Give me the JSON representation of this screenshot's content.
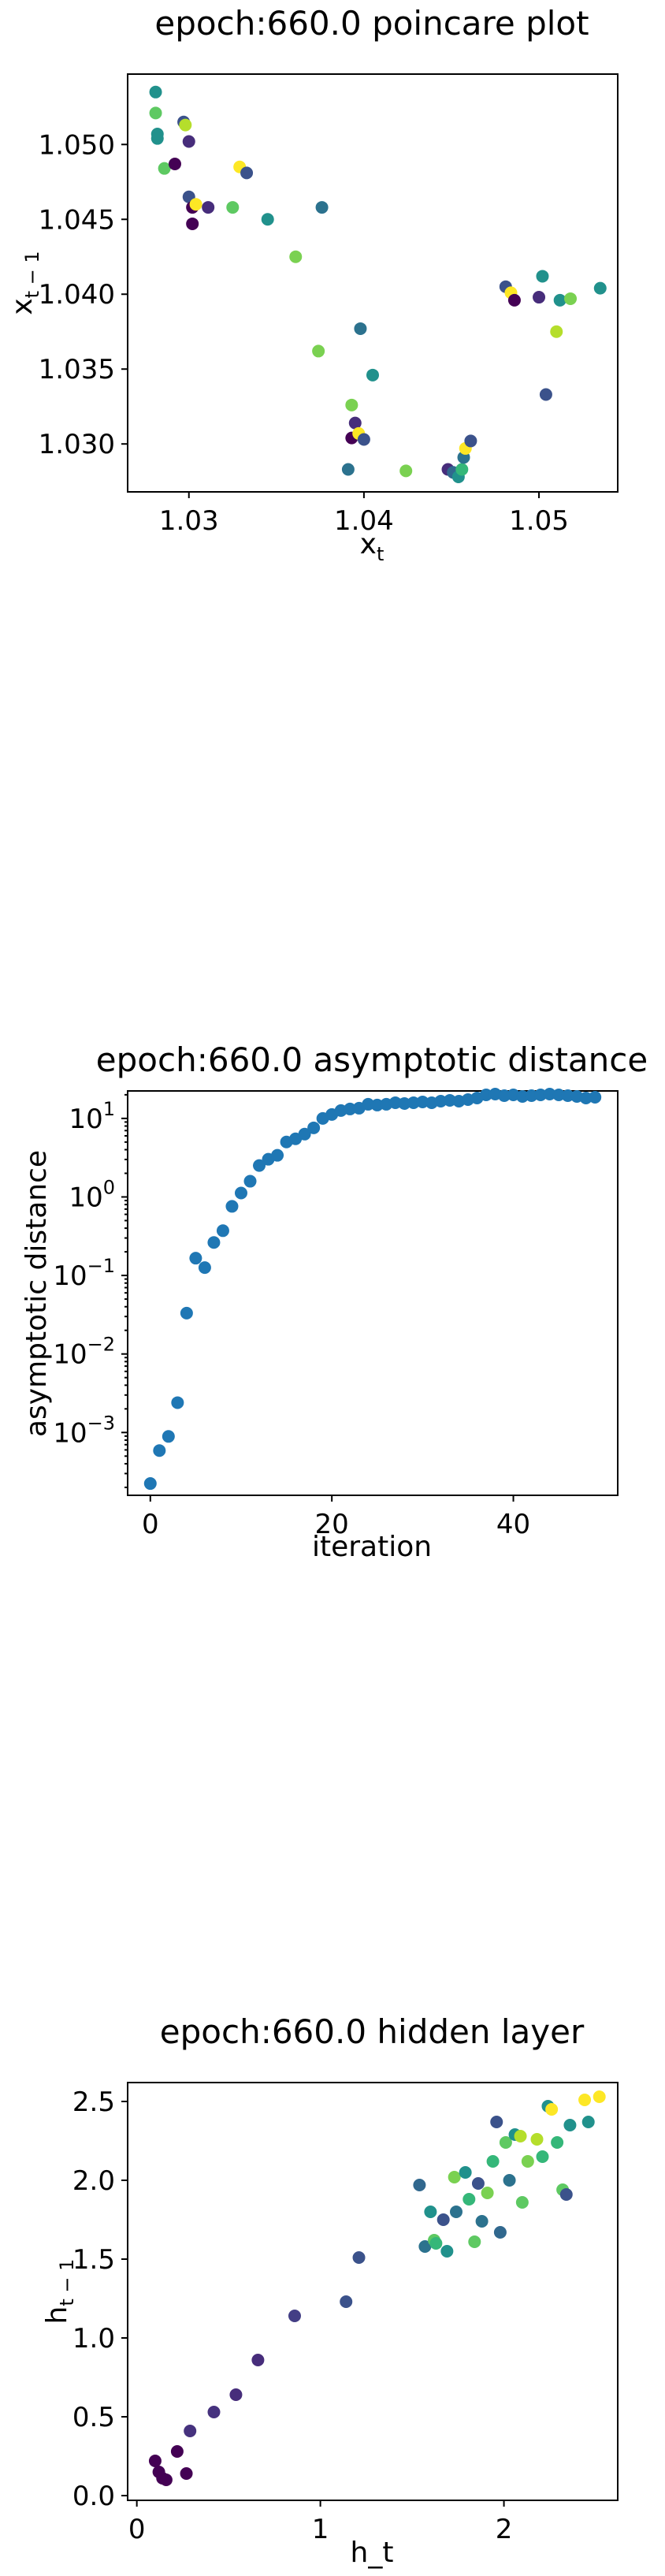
{
  "chart_data": [
    {
      "type": "scatter",
      "title": "epoch:660.0 poincare plot",
      "xlabel": "x",
      "xlabel_sub": "t",
      "ylabel": "x",
      "ylabel_sub": "t − 1",
      "xlim": [
        1.0265,
        1.0545
      ],
      "ylim": [
        1.0268,
        1.0547
      ],
      "xticks": [
        {
          "v": 1.03,
          "label": "1.03"
        },
        {
          "v": 1.04,
          "label": "1.04"
        },
        {
          "v": 1.05,
          "label": "1.05"
        }
      ],
      "yticks": [
        {
          "v": 1.03,
          "label": "1.030"
        },
        {
          "v": 1.035,
          "label": "1.035"
        },
        {
          "v": 1.04,
          "label": "1.040"
        },
        {
          "v": 1.045,
          "label": "1.045"
        },
        {
          "v": 1.05,
          "label": "1.050"
        }
      ],
      "points": [
        {
          "x": 1.0281,
          "y": 1.0535,
          "c": "#21918c"
        },
        {
          "x": 1.0281,
          "y": 1.0521,
          "c": "#5ec962"
        },
        {
          "x": 1.0282,
          "y": 1.0507,
          "c": "#21918c"
        },
        {
          "x": 1.0282,
          "y": 1.0504,
          "c": "#21918c"
        },
        {
          "x": 1.0286,
          "y": 1.0484,
          "c": "#5ec962"
        },
        {
          "x": 1.0292,
          "y": 1.0487,
          "c": "#440154"
        },
        {
          "x": 1.0297,
          "y": 1.0515,
          "c": "#3b528b"
        },
        {
          "x": 1.0298,
          "y": 1.0513,
          "c": "#b5de2b"
        },
        {
          "x": 1.03,
          "y": 1.0502,
          "c": "#472d7b"
        },
        {
          "x": 1.03,
          "y": 1.0465,
          "c": "#3b528b"
        },
        {
          "x": 1.0302,
          "y": 1.0458,
          "c": "#440154"
        },
        {
          "x": 1.0304,
          "y": 1.046,
          "c": "#fde725"
        },
        {
          "x": 1.0302,
          "y": 1.0447,
          "c": "#440154"
        },
        {
          "x": 1.0311,
          "y": 1.0458,
          "c": "#472d7b"
        },
        {
          "x": 1.0325,
          "y": 1.0458,
          "c": "#5ec962"
        },
        {
          "x": 1.0329,
          "y": 1.0485,
          "c": "#fde725"
        },
        {
          "x": 1.0333,
          "y": 1.0481,
          "c": "#3b528b"
        },
        {
          "x": 1.0345,
          "y": 1.045,
          "c": "#21918c"
        },
        {
          "x": 1.0361,
          "y": 1.0425,
          "c": "#7ad151"
        },
        {
          "x": 1.0374,
          "y": 1.0362,
          "c": "#7ad151"
        },
        {
          "x": 1.0376,
          "y": 1.0458,
          "c": "#2c728e"
        },
        {
          "x": 1.0391,
          "y": 1.0283,
          "c": "#2c728e"
        },
        {
          "x": 1.0393,
          "y": 1.0326,
          "c": "#7ad151"
        },
        {
          "x": 1.0393,
          "y": 1.0304,
          "c": "#440154"
        },
        {
          "x": 1.0395,
          "y": 1.0314,
          "c": "#472d7b"
        },
        {
          "x": 1.0397,
          "y": 1.0307,
          "c": "#fde725"
        },
        {
          "x": 1.04,
          "y": 1.0303,
          "c": "#3b528b"
        },
        {
          "x": 1.0398,
          "y": 1.0377,
          "c": "#2c728e"
        },
        {
          "x": 1.0405,
          "y": 1.0346,
          "c": "#21918c"
        },
        {
          "x": 1.0424,
          "y": 1.0282,
          "c": "#7ad151"
        },
        {
          "x": 1.0448,
          "y": 1.0283,
          "c": "#472d7b"
        },
        {
          "x": 1.0451,
          "y": 1.0281,
          "c": "#31688e"
        },
        {
          "x": 1.0454,
          "y": 1.0278,
          "c": "#21918c"
        },
        {
          "x": 1.0456,
          "y": 1.0283,
          "c": "#35b779"
        },
        {
          "x": 1.0457,
          "y": 1.0291,
          "c": "#2c728e"
        },
        {
          "x": 1.0458,
          "y": 1.0297,
          "c": "#fde725"
        },
        {
          "x": 1.0461,
          "y": 1.0302,
          "c": "#3b528b"
        },
        {
          "x": 1.0481,
          "y": 1.0405,
          "c": "#3b528b"
        },
        {
          "x": 1.0484,
          "y": 1.0401,
          "c": "#fde725"
        },
        {
          "x": 1.0486,
          "y": 1.0396,
          "c": "#440154"
        },
        {
          "x": 1.05,
          "y": 1.0398,
          "c": "#472d7b"
        },
        {
          "x": 1.0502,
          "y": 1.0412,
          "c": "#21918c"
        },
        {
          "x": 1.0504,
          "y": 1.0333,
          "c": "#3b528b"
        },
        {
          "x": 1.051,
          "y": 1.0375,
          "c": "#b5de2b"
        },
        {
          "x": 1.0512,
          "y": 1.0396,
          "c": "#21918c"
        },
        {
          "x": 1.0518,
          "y": 1.0397,
          "c": "#7ad151"
        },
        {
          "x": 1.0535,
          "y": 1.0404,
          "c": "#21918c"
        }
      ]
    },
    {
      "type": "scatter",
      "title": "epoch:660.0 asymptotic distance",
      "xlabel": "iteration",
      "ylabel": "asymptotic distance",
      "yscale": "log",
      "xlim": [
        -2.5,
        51.5
      ],
      "ylim_log10": [
        -3.8,
        1.35
      ],
      "color": "#1f77b4",
      "xticks": [
        {
          "v": 0,
          "label": "0"
        },
        {
          "v": 20,
          "label": "20"
        },
        {
          "v": 40,
          "label": "40"
        }
      ],
      "yticks": [
        {
          "e": -3,
          "base": "10",
          "exp": "−3"
        },
        {
          "e": -2,
          "base": "10",
          "exp": "−2"
        },
        {
          "e": -1,
          "base": "10",
          "exp": "−1"
        },
        {
          "e": 0,
          "base": "10",
          "exp": "0"
        },
        {
          "e": 1,
          "base": "10",
          "exp": "1"
        }
      ],
      "x": [
        0,
        1,
        2,
        3,
        4,
        5,
        6,
        7,
        8,
        9,
        10,
        11,
        12,
        13,
        14,
        15,
        16,
        17,
        18,
        19,
        20,
        21,
        22,
        23,
        24,
        25,
        26,
        27,
        28,
        29,
        30,
        31,
        32,
        33,
        34,
        35,
        36,
        37,
        38,
        39,
        40,
        41,
        42,
        43,
        44,
        45,
        46,
        47,
        48,
        49
      ],
      "log10_y": [
        -3.65,
        -3.23,
        -3.05,
        -2.62,
        -1.48,
        -0.78,
        -0.9,
        -0.58,
        -0.43,
        -0.12,
        0.05,
        0.2,
        0.4,
        0.48,
        0.53,
        0.7,
        0.74,
        0.8,
        0.88,
        1.0,
        1.05,
        1.1,
        1.12,
        1.13,
        1.18,
        1.17,
        1.18,
        1.2,
        1.19,
        1.2,
        1.21,
        1.2,
        1.22,
        1.23,
        1.22,
        1.24,
        1.26,
        1.3,
        1.31,
        1.29,
        1.3,
        1.28,
        1.29,
        1.3,
        1.31,
        1.3,
        1.29,
        1.28,
        1.26,
        1.27
      ]
    },
    {
      "type": "scatter",
      "title": "epoch:660.0 hidden layer",
      "xlabel": "h_t",
      "ylabel": "h",
      "ylabel_sub": "t − 1",
      "xlim": [
        -0.05,
        2.62
      ],
      "ylim": [
        -0.03,
        2.62
      ],
      "xticks": [
        {
          "v": 0,
          "label": "0"
        },
        {
          "v": 1,
          "label": "1"
        },
        {
          "v": 2,
          "label": "2"
        }
      ],
      "yticks": [
        {
          "v": 0,
          "label": "0.0"
        },
        {
          "v": 0.5,
          "label": "0.5"
        },
        {
          "v": 1,
          "label": "1.0"
        },
        {
          "v": 1.5,
          "label": "1.5"
        },
        {
          "v": 2,
          "label": "2.0"
        },
        {
          "v": 2.5,
          "label": "2.5"
        }
      ],
      "points": [
        {
          "x": 0.1,
          "y": 0.22,
          "c": "#440154"
        },
        {
          "x": 0.12,
          "y": 0.15,
          "c": "#440154"
        },
        {
          "x": 0.14,
          "y": 0.11,
          "c": "#440154"
        },
        {
          "x": 0.16,
          "y": 0.1,
          "c": "#440154"
        },
        {
          "x": 0.22,
          "y": 0.28,
          "c": "#440154"
        },
        {
          "x": 0.27,
          "y": 0.14,
          "c": "#440154"
        },
        {
          "x": 0.29,
          "y": 0.41,
          "c": "#46327e"
        },
        {
          "x": 0.42,
          "y": 0.53,
          "c": "#46327e"
        },
        {
          "x": 0.54,
          "y": 0.64,
          "c": "#472d7b"
        },
        {
          "x": 0.66,
          "y": 0.86,
          "c": "#472d7b"
        },
        {
          "x": 0.86,
          "y": 1.14,
          "c": "#433e85"
        },
        {
          "x": 1.14,
          "y": 1.23,
          "c": "#3b528b"
        },
        {
          "x": 1.21,
          "y": 1.51,
          "c": "#3b528b"
        },
        {
          "x": 1.54,
          "y": 1.97,
          "c": "#31688e"
        },
        {
          "x": 1.57,
          "y": 1.58,
          "c": "#2c728e"
        },
        {
          "x": 1.6,
          "y": 1.8,
          "c": "#21918c"
        },
        {
          "x": 1.62,
          "y": 1.62,
          "c": "#5ec962"
        },
        {
          "x": 1.63,
          "y": 1.6,
          "c": "#35b779"
        },
        {
          "x": 1.67,
          "y": 1.75,
          "c": "#3b528b"
        },
        {
          "x": 1.69,
          "y": 1.55,
          "c": "#21918c"
        },
        {
          "x": 1.73,
          "y": 2.02,
          "c": "#7ad151"
        },
        {
          "x": 1.74,
          "y": 1.8,
          "c": "#2c728e"
        },
        {
          "x": 1.79,
          "y": 2.05,
          "c": "#21918c"
        },
        {
          "x": 1.81,
          "y": 1.88,
          "c": "#35b779"
        },
        {
          "x": 1.84,
          "y": 1.61,
          "c": "#5ec962"
        },
        {
          "x": 1.86,
          "y": 1.98,
          "c": "#3b528b"
        },
        {
          "x": 1.88,
          "y": 1.74,
          "c": "#2c728e"
        },
        {
          "x": 1.91,
          "y": 1.92,
          "c": "#7ad151"
        },
        {
          "x": 1.94,
          "y": 2.12,
          "c": "#35b779"
        },
        {
          "x": 1.96,
          "y": 2.37,
          "c": "#3b528b"
        },
        {
          "x": 1.98,
          "y": 1.67,
          "c": "#31688e"
        },
        {
          "x": 2.01,
          "y": 2.24,
          "c": "#5ec962"
        },
        {
          "x": 2.03,
          "y": 2.0,
          "c": "#2c728e"
        },
        {
          "x": 2.06,
          "y": 2.29,
          "c": "#21918c"
        },
        {
          "x": 2.09,
          "y": 2.28,
          "c": "#b5de2b"
        },
        {
          "x": 2.1,
          "y": 1.86,
          "c": "#5ec962"
        },
        {
          "x": 2.13,
          "y": 2.12,
          "c": "#7ad151"
        },
        {
          "x": 2.18,
          "y": 2.26,
          "c": "#b5de2b"
        },
        {
          "x": 2.21,
          "y": 2.15,
          "c": "#35b779"
        },
        {
          "x": 2.24,
          "y": 2.47,
          "c": "#21918c"
        },
        {
          "x": 2.26,
          "y": 2.45,
          "c": "#fde725"
        },
        {
          "x": 2.29,
          "y": 2.24,
          "c": "#35b779"
        },
        {
          "x": 2.32,
          "y": 1.94,
          "c": "#5ec962"
        },
        {
          "x": 2.34,
          "y": 1.91,
          "c": "#3b528b"
        },
        {
          "x": 2.36,
          "y": 2.35,
          "c": "#21918c"
        },
        {
          "x": 2.44,
          "y": 2.51,
          "c": "#fde725"
        },
        {
          "x": 2.46,
          "y": 2.37,
          "c": "#21918c"
        },
        {
          "x": 2.52,
          "y": 2.53,
          "c": "#fde725"
        }
      ]
    }
  ]
}
